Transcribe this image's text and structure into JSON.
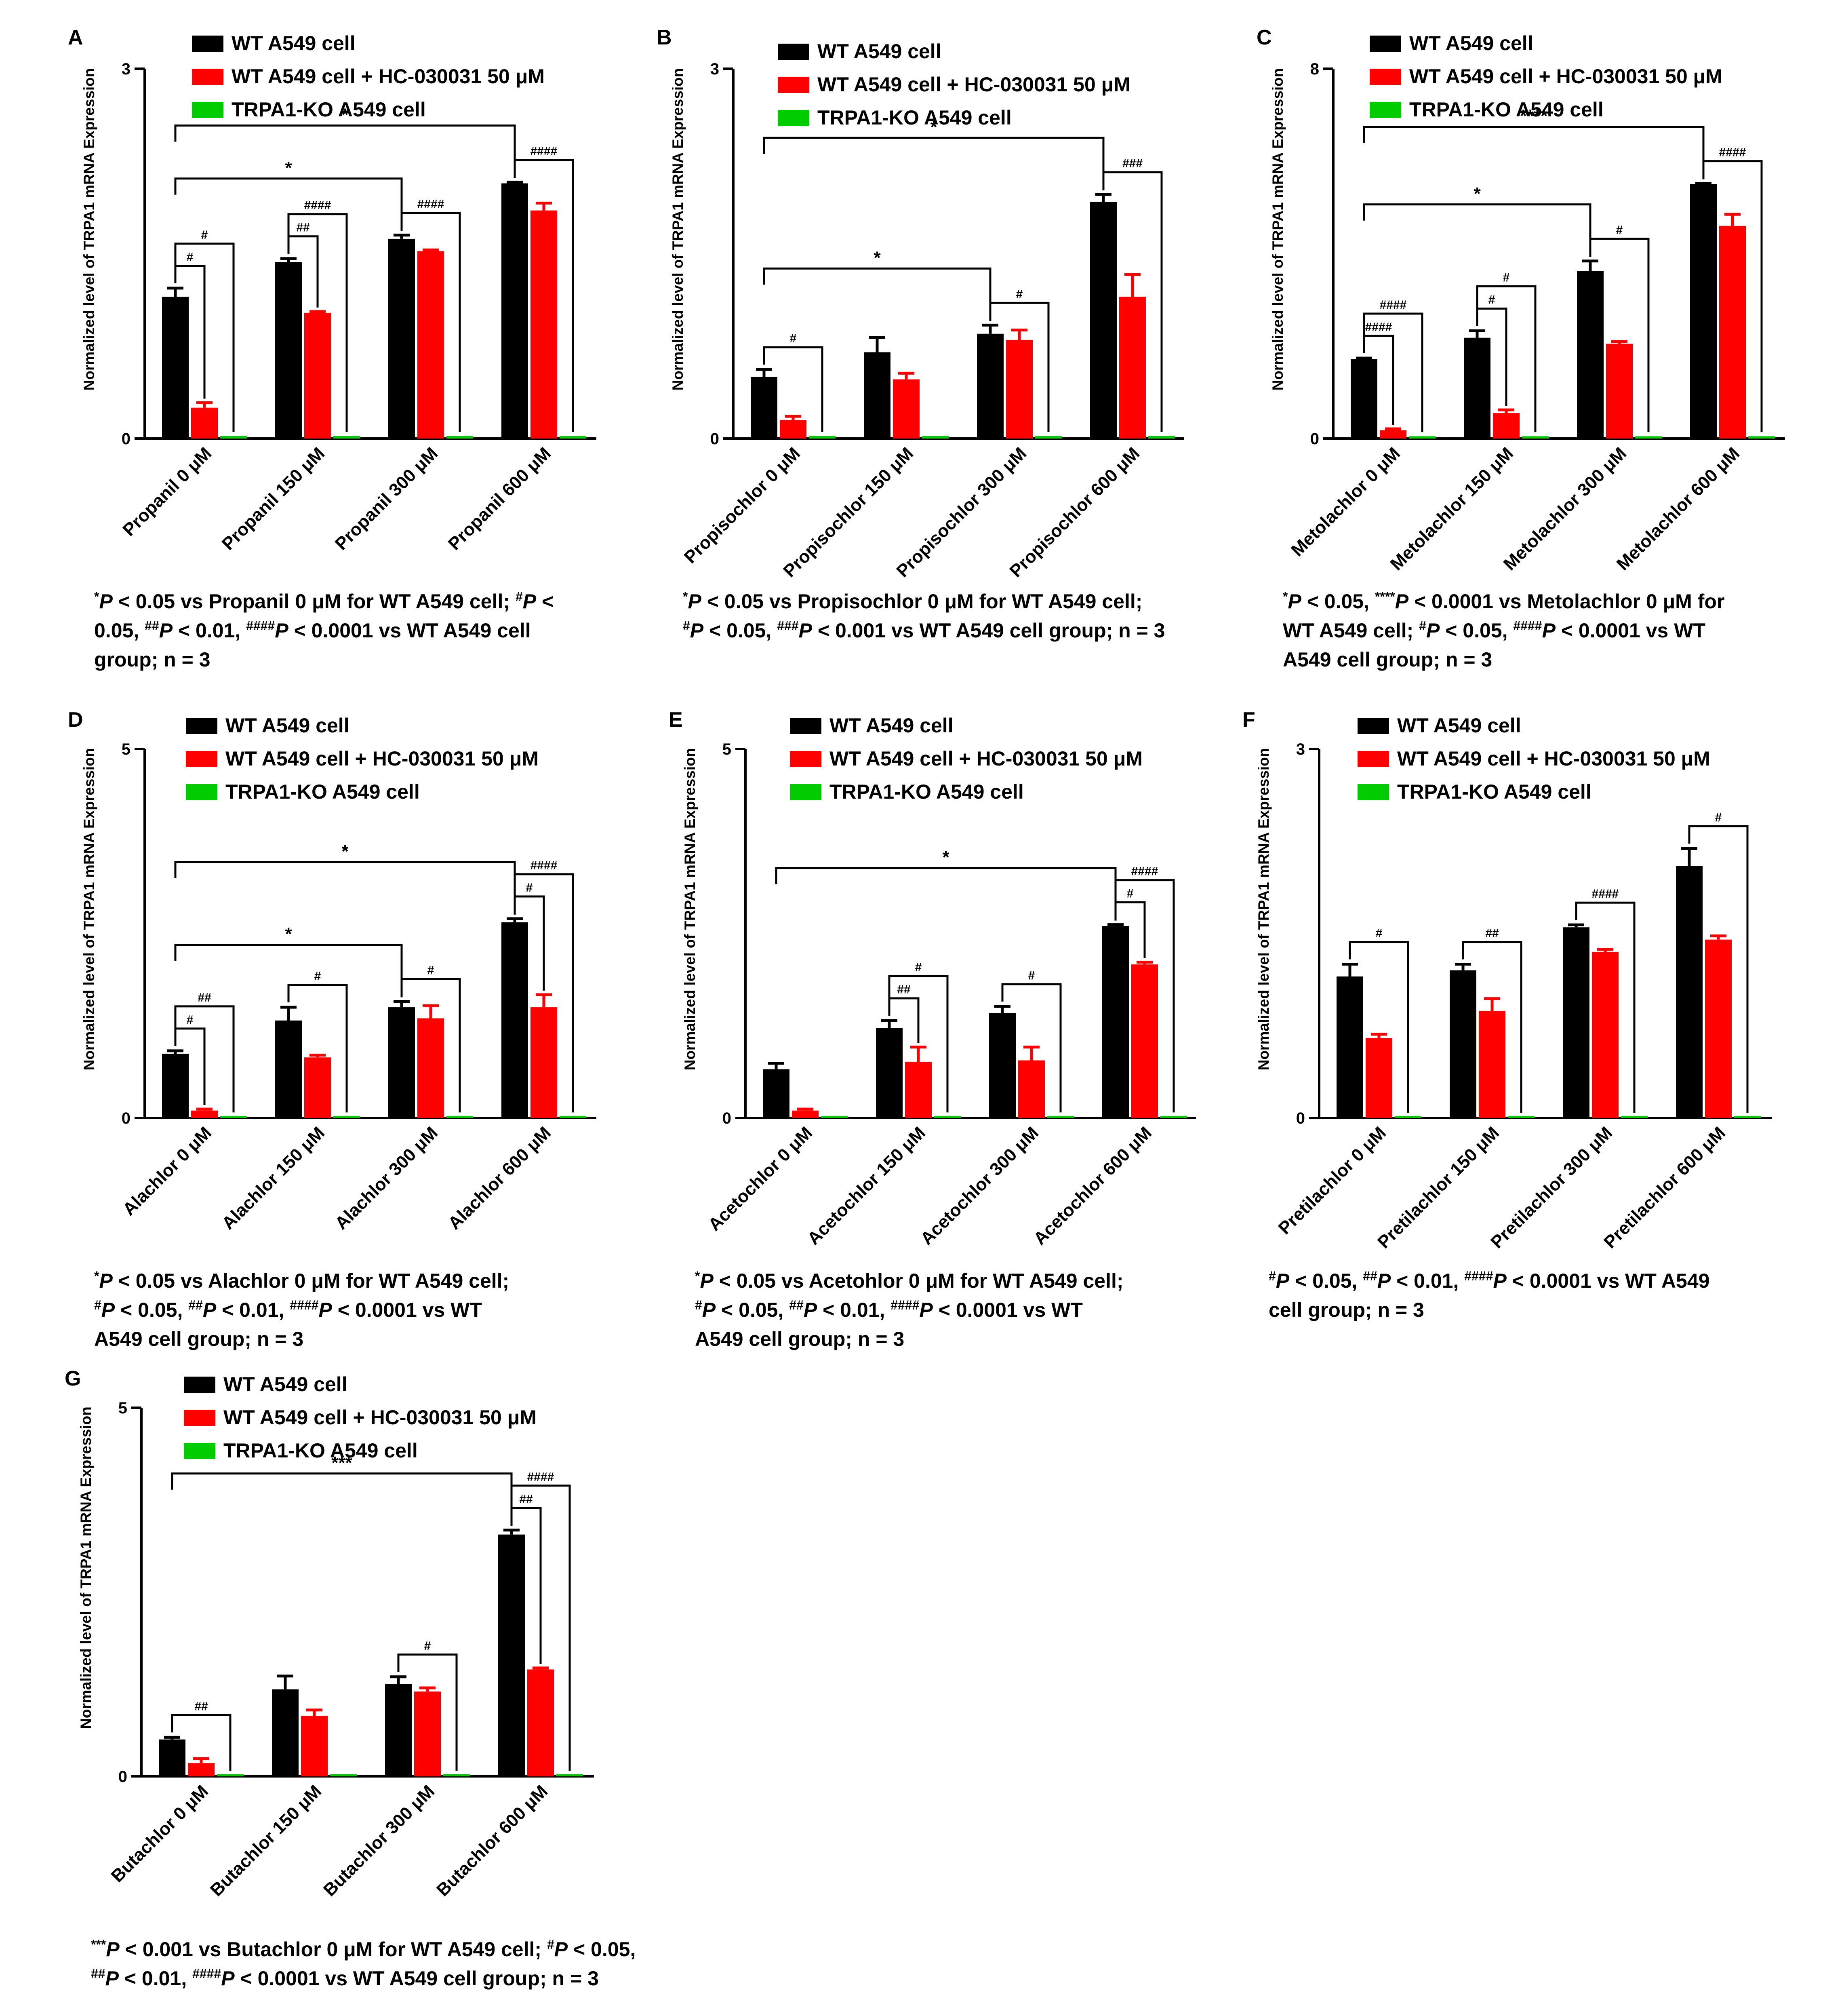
{
  "legend_labels": {
    "wt": "WT A549 cell",
    "inh": "WT A549 cell + HC-030031 50 μM",
    "ko": "TRPA1-KO A549 cell"
  },
  "ylabel": "Normalized level of TRPA1 mRNA Expression",
  "colors": {
    "wt": "#000000",
    "inh": "#ff0000",
    "ko": "#00cc00",
    "axis": "#000000"
  },
  "chart_data": [
    {
      "type": "bar",
      "panel": "A",
      "ylim": [
        0,
        3
      ],
      "yticks": [
        "0",
        "3"
      ],
      "xlabel": "",
      "ylabel": "Normalized level of TRPA1 mRNA Expression",
      "legend_position": "top",
      "categories": [
        "Propanil 0 μM",
        "Propanil 150 μM",
        "Propanil 300 μM",
        "Propanil 600 μM"
      ],
      "series": [
        {
          "name": "WT A549 cell",
          "values": [
            1.15,
            1.43,
            1.62,
            2.07
          ],
          "errors": [
            0.07,
            0.03,
            0.03,
            0.01
          ]
        },
        {
          "name": "WT A549 cell + HC-030031 50 μM",
          "values": [
            0.25,
            1.02,
            1.52,
            1.85
          ],
          "errors": [
            0.04,
            0.01,
            0.01,
            0.06
          ]
        },
        {
          "name": "TRPA1-KO A549 cell",
          "values": [
            0.02,
            0.02,
            0.02,
            0.02
          ],
          "errors": [
            0,
            0,
            0,
            0
          ]
        }
      ],
      "brackets": [
        {
          "label": "#",
          "from": [
            0,
            0
          ],
          "to": [
            0,
            1
          ]
        },
        {
          "label": "#",
          "from": [
            0,
            0
          ],
          "to": [
            0,
            2
          ]
        },
        {
          "label": "##",
          "from": [
            1,
            0
          ],
          "to": [
            1,
            1
          ]
        },
        {
          "label": "####",
          "from": [
            1,
            0
          ],
          "to": [
            1,
            2
          ]
        },
        {
          "label": "*",
          "from": [
            0,
            0
          ],
          "to": [
            2,
            0
          ]
        },
        {
          "label": "####",
          "from": [
            2,
            0
          ],
          "to": [
            2,
            2
          ]
        },
        {
          "label": "*",
          "from": [
            0,
            0
          ],
          "to": [
            3,
            0
          ]
        },
        {
          "label": "####",
          "from": [
            3,
            0
          ],
          "to": [
            3,
            2
          ]
        }
      ],
      "caption": [
        "*P < 0.05 vs Propanil 0 μM for WT A549 cell; #P <",
        "0.05, ##P < 0.01, ####P < 0.0001 vs WT A549 cell",
        "group; n = 3"
      ]
    },
    {
      "type": "bar",
      "panel": "B",
      "ylim": [
        0,
        3
      ],
      "yticks": [
        "0",
        "3"
      ],
      "xlabel": "",
      "ylabel": "Normalized level of TRPA1 mRNA Expression",
      "legend_position": "top",
      "categories": [
        "Propisochlor 0 μM",
        "Propisochlor 150 μM",
        "Propisochlor 300 μM",
        "Propisochlor 600 μM"
      ],
      "series": [
        {
          "name": "WT A549 cell",
          "values": [
            0.5,
            0.7,
            0.85,
            1.92
          ],
          "errors": [
            0.06,
            0.12,
            0.07,
            0.06
          ]
        },
        {
          "name": "WT A549 cell + HC-030031 50 μM",
          "values": [
            0.15,
            0.48,
            0.8,
            1.15
          ],
          "errors": [
            0.03,
            0.05,
            0.08,
            0.18
          ]
        },
        {
          "name": "TRPA1-KO A549 cell",
          "values": [
            0.02,
            0.02,
            0.02,
            0.02
          ],
          "errors": [
            0,
            0,
            0,
            0
          ]
        }
      ],
      "brackets": [
        {
          "label": "#",
          "from": [
            0,
            0
          ],
          "to": [
            0,
            2
          ]
        },
        {
          "label": "*",
          "from": [
            0,
            0
          ],
          "to": [
            2,
            0
          ]
        },
        {
          "label": "#",
          "from": [
            2,
            0
          ],
          "to": [
            2,
            2
          ]
        },
        {
          "label": "*",
          "from": [
            0,
            0
          ],
          "to": [
            3,
            0
          ]
        },
        {
          "label": "###",
          "from": [
            3,
            0
          ],
          "to": [
            3,
            2
          ]
        }
      ],
      "caption": [
        "*P < 0.05 vs Propisochlor 0 μM for WT A549 cell;",
        "#P < 0.05, ###P < 0.001 vs WT A549 cell group; n = 3"
      ]
    },
    {
      "type": "bar",
      "panel": "C",
      "ylim": [
        0,
        8
      ],
      "yticks": [
        "0",
        "8"
      ],
      "xlabel": "",
      "ylabel": "Normalized level of TRPA1 mRNA Expression",
      "legend_position": "top",
      "categories": [
        "Metolachlor 0 μM",
        "Metolachlor 150 μM",
        "Metolachlor 300 μM",
        "Metolachlor 600 μM"
      ],
      "series": [
        {
          "name": "WT A549 cell",
          "values": [
            1.72,
            2.18,
            3.62,
            5.5
          ],
          "errors": [
            0.02,
            0.15,
            0.22,
            0.02
          ]
        },
        {
          "name": "WT A549 cell + HC-030031 50 μM",
          "values": [
            0.18,
            0.55,
            2.05,
            4.6
          ],
          "errors": [
            0.03,
            0.07,
            0.05,
            0.25
          ]
        },
        {
          "name": "TRPA1-KO A549 cell",
          "values": [
            0.05,
            0.05,
            0.05,
            0.05
          ],
          "errors": [
            0,
            0,
            0,
            0
          ]
        }
      ],
      "brackets": [
        {
          "label": "####",
          "from": [
            0,
            0
          ],
          "to": [
            0,
            1
          ]
        },
        {
          "label": "####",
          "from": [
            0,
            0
          ],
          "to": [
            0,
            2
          ]
        },
        {
          "label": "#",
          "from": [
            1,
            0
          ],
          "to": [
            1,
            1
          ]
        },
        {
          "label": "#",
          "from": [
            1,
            0
          ],
          "to": [
            1,
            2
          ]
        },
        {
          "label": "*",
          "from": [
            0,
            0
          ],
          "to": [
            2,
            0
          ]
        },
        {
          "label": "#",
          "from": [
            2,
            0
          ],
          "to": [
            2,
            2
          ]
        },
        {
          "label": "****",
          "from": [
            0,
            0
          ],
          "to": [
            3,
            0
          ]
        },
        {
          "label": "####",
          "from": [
            3,
            0
          ],
          "to": [
            3,
            2
          ]
        }
      ],
      "caption": [
        "*P < 0.05, ****P < 0.0001 vs Metolachlor 0 μM for",
        "WT A549 cell; #P < 0.05, ####P < 0.0001 vs WT",
        "A549 cell group; n = 3"
      ]
    },
    {
      "type": "bar",
      "panel": "D",
      "ylim": [
        0,
        5
      ],
      "yticks": [
        "0",
        "5"
      ],
      "xlabel": "",
      "ylabel": "Normalized level of TRPA1 mRNA Expression",
      "legend_position": "top",
      "categories": [
        "Alachlor 0 μM",
        "Alachlor 150 μM",
        "Alachlor 300 μM",
        "Alachlor 600 μM"
      ],
      "series": [
        {
          "name": "WT A549 cell",
          "values": [
            0.87,
            1.32,
            1.5,
            2.65
          ],
          "errors": [
            0.04,
            0.18,
            0.08,
            0.05
          ]
        },
        {
          "name": "WT A549 cell + HC-030031 50 μM",
          "values": [
            0.1,
            0.82,
            1.35,
            1.5
          ],
          "errors": [
            0.02,
            0.03,
            0.17,
            0.17
          ]
        },
        {
          "name": "TRPA1-KO A549 cell",
          "values": [
            0.02,
            0.02,
            0.02,
            0.02
          ],
          "errors": [
            0,
            0,
            0,
            0
          ]
        }
      ],
      "brackets": [
        {
          "label": "#",
          "from": [
            0,
            0
          ],
          "to": [
            0,
            1
          ]
        },
        {
          "label": "##",
          "from": [
            0,
            0
          ],
          "to": [
            0,
            2
          ]
        },
        {
          "label": "#",
          "from": [
            1,
            0
          ],
          "to": [
            1,
            2
          ]
        },
        {
          "label": "*",
          "from": [
            0,
            0
          ],
          "to": [
            2,
            0
          ]
        },
        {
          "label": "#",
          "from": [
            2,
            0
          ],
          "to": [
            2,
            2
          ]
        },
        {
          "label": "#",
          "from": [
            3,
            0
          ],
          "to": [
            3,
            1
          ]
        },
        {
          "label": "*",
          "from": [
            0,
            0
          ],
          "to": [
            3,
            0
          ]
        },
        {
          "label": "####",
          "from": [
            3,
            0
          ],
          "to": [
            3,
            2
          ]
        }
      ],
      "caption": [
        "*P < 0.05 vs Alachlor 0 μM for WT A549 cell;",
        "#P < 0.05, ##P < 0.01, ####P < 0.0001 vs WT",
        "A549 cell group; n = 3"
      ]
    },
    {
      "type": "bar",
      "panel": "E",
      "ylim": [
        0,
        5
      ],
      "yticks": [
        "0",
        "5"
      ],
      "xlabel": "",
      "ylabel": "Normalized level of TRPA1 mRNA Expression",
      "legend_position": "top",
      "categories": [
        "Acetochlor 0 μM",
        "Acetochlor 150 μM",
        "Acetochlor 300 μM",
        "Acetochlor 600 μM"
      ],
      "series": [
        {
          "name": "WT A549 cell",
          "values": [
            0.66,
            1.22,
            1.42,
            2.6
          ],
          "errors": [
            0.08,
            0.1,
            0.09,
            0.02
          ]
        },
        {
          "name": "WT A549 cell + HC-030031 50 μM",
          "values": [
            0.1,
            0.76,
            0.78,
            2.08
          ],
          "errors": [
            0.02,
            0.2,
            0.18,
            0.03
          ]
        },
        {
          "name": "TRPA1-KO A549 cell",
          "values": [
            0.02,
            0.02,
            0.02,
            0.02
          ],
          "errors": [
            0,
            0,
            0,
            0
          ]
        }
      ],
      "brackets": [
        {
          "label": "##",
          "from": [
            1,
            0
          ],
          "to": [
            1,
            1
          ]
        },
        {
          "label": "#",
          "from": [
            1,
            0
          ],
          "to": [
            1,
            2
          ]
        },
        {
          "label": "#",
          "from": [
            2,
            0
          ],
          "to": [
            2,
            2
          ]
        },
        {
          "label": "*",
          "from": [
            0,
            0
          ],
          "to": [
            3,
            0
          ]
        },
        {
          "label": "#",
          "from": [
            3,
            0
          ],
          "to": [
            3,
            1
          ]
        },
        {
          "label": "####",
          "from": [
            3,
            0
          ],
          "to": [
            3,
            2
          ]
        }
      ],
      "caption": [
        "*P < 0.05 vs Acetohlor 0 μM for WT A549 cell;",
        "#P < 0.05, ##P < 0.01, ####P < 0.0001 vs WT",
        "A549 cell group; n = 3"
      ]
    },
    {
      "type": "bar",
      "panel": "F",
      "ylim": [
        0,
        3
      ],
      "yticks": [
        "0",
        "3"
      ],
      "xlabel": "",
      "ylabel": "Normalized level of TRPA1 mRNA Expression",
      "legend_position": "top",
      "categories": [
        "Pretilachlor 0 μM",
        "Pretilachlor 150 μM",
        "Pretilachlor 300 μM",
        "Pretilachlor 600 μM"
      ],
      "series": [
        {
          "name": "WT A549 cell",
          "values": [
            1.15,
            1.2,
            1.55,
            2.05
          ],
          "errors": [
            0.1,
            0.05,
            0.02,
            0.14
          ]
        },
        {
          "name": "WT A549 cell + HC-030031 50 μM",
          "values": [
            0.65,
            0.87,
            1.35,
            1.45
          ],
          "errors": [
            0.03,
            0.1,
            0.02,
            0.03
          ]
        },
        {
          "name": "TRPA1-KO A549 cell",
          "values": [
            0.01,
            0.01,
            0.01,
            0.01
          ],
          "errors": [
            0,
            0,
            0,
            0
          ]
        }
      ],
      "brackets": [
        {
          "label": "#",
          "from": [
            0,
            0
          ],
          "to": [
            0,
            2
          ]
        },
        {
          "label": "##",
          "from": [
            1,
            0
          ],
          "to": [
            1,
            2
          ]
        },
        {
          "label": "####",
          "from": [
            2,
            0
          ],
          "to": [
            2,
            2
          ]
        },
        {
          "label": "#",
          "from": [
            3,
            0
          ],
          "to": [
            3,
            2
          ]
        }
      ],
      "caption": [
        "#P < 0.05, ##P < 0.01, ####P < 0.0001 vs WT A549",
        "cell group; n = 3"
      ]
    },
    {
      "type": "bar",
      "panel": "G",
      "ylim": [
        0,
        5
      ],
      "yticks": [
        "0",
        "5"
      ],
      "xlabel": "",
      "ylabel": "Normalized level of TRPA1 mRNA Expression",
      "legend_position": "top",
      "categories": [
        "Butachlor 0 μM",
        "Butachlor 150 μM",
        "Butachlor 300 μM",
        "Butachlor 600 μM"
      ],
      "series": [
        {
          "name": "WT A549 cell",
          "values": [
            0.5,
            1.18,
            1.25,
            3.28
          ],
          "errors": [
            0.03,
            0.18,
            0.1,
            0.06
          ]
        },
        {
          "name": "WT A549 cell + HC-030031 50 μM",
          "values": [
            0.18,
            0.82,
            1.15,
            1.45
          ],
          "errors": [
            0.06,
            0.08,
            0.05,
            0.02
          ]
        },
        {
          "name": "TRPA1-KO A549 cell",
          "values": [
            0.02,
            0.02,
            0.02,
            0.02
          ],
          "errors": [
            0,
            0,
            0,
            0
          ]
        }
      ],
      "brackets": [
        {
          "label": "##",
          "from": [
            0,
            0
          ],
          "to": [
            0,
            2
          ]
        },
        {
          "label": "#",
          "from": [
            2,
            0
          ],
          "to": [
            2,
            2
          ]
        },
        {
          "label": "***",
          "from": [
            0,
            0
          ],
          "to": [
            3,
            0
          ]
        },
        {
          "label": "##",
          "from": [
            3,
            0
          ],
          "to": [
            3,
            1
          ]
        },
        {
          "label": "####",
          "from": [
            3,
            0
          ],
          "to": [
            3,
            2
          ]
        }
      ],
      "caption": [
        "***P < 0.001 vs Butachlor 0 μM for WT A549 cell; #P < 0.05,",
        "##P < 0.01, ####P < 0.0001 vs WT A549 cell group; n = 3"
      ]
    }
  ]
}
